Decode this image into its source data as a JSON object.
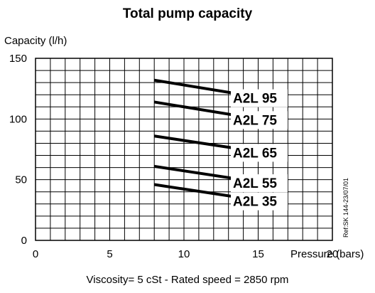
{
  "chart_data": {
    "type": "line",
    "title": "Total  pump capacity",
    "ylabel": "Capacity   (l/h)",
    "xlabel": "Pressure (bars)",
    "footer": "Viscosity= 5 cSt  -  Rated speed = 2850 rpm",
    "ref_note": "Ref:SK 144-23/07/01",
    "xlim": [
      0,
      20
    ],
    "ylim": [
      0,
      150
    ],
    "x_ticks": [
      "0",
      "5",
      "10",
      "15",
      "20"
    ],
    "y_ticks": [
      "0",
      "50",
      "100",
      "150"
    ],
    "grid": true,
    "series": [
      {
        "name": "A2L 95",
        "x": [
          8,
          15
        ],
        "y": [
          132,
          118
        ]
      },
      {
        "name": "A2L 75",
        "x": [
          8,
          15
        ],
        "y": [
          114,
          100
        ]
      },
      {
        "name": "A2L 65",
        "x": [
          8,
          15
        ],
        "y": [
          86,
          73
        ]
      },
      {
        "name": "A2L 55",
        "x": [
          8,
          15
        ],
        "y": [
          61,
          48
        ]
      },
      {
        "name": "A2L 35",
        "x": [
          8,
          15
        ],
        "y": [
          46,
          33
        ]
      }
    ]
  }
}
